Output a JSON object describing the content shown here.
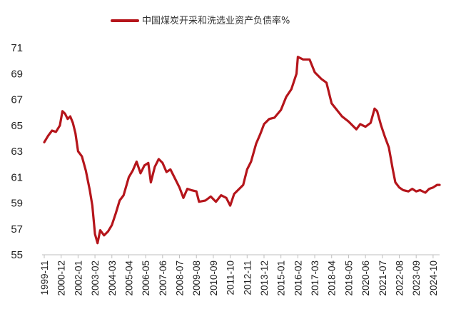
{
  "chart_data": {
    "type": "line",
    "title": "",
    "xlabel": "",
    "ylabel": "",
    "ylim": [
      55,
      71
    ],
    "yticks": [
      55,
      57,
      59,
      61,
      63,
      65,
      67,
      69,
      71
    ],
    "grid": false,
    "legend_position": "top-center",
    "x_tick_labels": [
      "1999-11",
      "2000-12",
      "2002-01",
      "2003-02",
      "2004-03",
      "2005-04",
      "2006-05",
      "2007-06",
      "2008-07",
      "2009-08",
      "2010-09",
      "2011-10",
      "2012-11",
      "2013-12",
      "2015-01",
      "2016-02",
      "2017-03",
      "2018-04",
      "2019-05",
      "2020-06",
      "2021-07",
      "2022-08",
      "2023-09",
      "2024-10"
    ],
    "series": [
      {
        "name": "中国煤炭开采和洗选业资产负债率%",
        "color": "#b5151b",
        "points": [
          [
            "1999-11",
            63.7
          ],
          [
            "2000-02",
            64.2
          ],
          [
            "2000-05",
            64.6
          ],
          [
            "2000-08",
            64.5
          ],
          [
            "2000-11",
            65.0
          ],
          [
            "2001-01",
            66.1
          ],
          [
            "2001-03",
            65.9
          ],
          [
            "2001-05",
            65.5
          ],
          [
            "2001-07",
            65.7
          ],
          [
            "2001-09",
            65.2
          ],
          [
            "2001-11",
            64.4
          ],
          [
            "2002-01",
            63.0
          ],
          [
            "2002-04",
            62.6
          ],
          [
            "2002-07",
            61.5
          ],
          [
            "2002-10",
            60.0
          ],
          [
            "2002-12",
            58.8
          ],
          [
            "2003-02",
            56.6
          ],
          [
            "2003-04",
            55.9
          ],
          [
            "2003-06",
            56.9
          ],
          [
            "2003-09",
            56.5
          ],
          [
            "2003-12",
            56.8
          ],
          [
            "2004-03",
            57.3
          ],
          [
            "2004-06",
            58.2
          ],
          [
            "2004-09",
            59.2
          ],
          [
            "2004-12",
            59.6
          ],
          [
            "2005-04",
            61.0
          ],
          [
            "2005-07",
            61.5
          ],
          [
            "2005-10",
            62.2
          ],
          [
            "2006-01",
            61.3
          ],
          [
            "2006-04",
            61.9
          ],
          [
            "2006-07",
            62.1
          ],
          [
            "2006-09",
            60.6
          ],
          [
            "2006-12",
            61.8
          ],
          [
            "2007-03",
            62.4
          ],
          [
            "2007-06",
            62.1
          ],
          [
            "2007-09",
            61.4
          ],
          [
            "2007-12",
            61.6
          ],
          [
            "2008-04",
            60.8
          ],
          [
            "2008-07",
            60.2
          ],
          [
            "2008-10",
            59.4
          ],
          [
            "2009-01",
            60.1
          ],
          [
            "2009-04",
            60.0
          ],
          [
            "2009-08",
            59.9
          ],
          [
            "2009-10",
            59.1
          ],
          [
            "2010-03",
            59.2
          ],
          [
            "2010-07",
            59.5
          ],
          [
            "2010-11",
            59.1
          ],
          [
            "2011-03",
            59.6
          ],
          [
            "2011-07",
            59.4
          ],
          [
            "2011-10",
            58.8
          ],
          [
            "2012-01",
            59.7
          ],
          [
            "2012-04",
            60.0
          ],
          [
            "2012-08",
            60.4
          ],
          [
            "2012-11",
            61.6
          ],
          [
            "2013-02",
            62.2
          ],
          [
            "2013-06",
            63.6
          ],
          [
            "2013-09",
            64.3
          ],
          [
            "2013-12",
            65.1
          ],
          [
            "2014-04",
            65.5
          ],
          [
            "2014-08",
            65.6
          ],
          [
            "2015-01",
            66.2
          ],
          [
            "2015-05",
            67.2
          ],
          [
            "2015-09",
            67.8
          ],
          [
            "2016-01",
            69.0
          ],
          [
            "2016-02",
            70.3
          ],
          [
            "2016-06",
            70.1
          ],
          [
            "2016-11",
            70.1
          ],
          [
            "2017-03",
            69.1
          ],
          [
            "2017-08",
            68.6
          ],
          [
            "2017-12",
            68.3
          ],
          [
            "2018-04",
            66.7
          ],
          [
            "2018-08",
            66.2
          ],
          [
            "2018-12",
            65.7
          ],
          [
            "2019-05",
            65.3
          ],
          [
            "2019-08",
            65.0
          ],
          [
            "2019-11",
            64.7
          ],
          [
            "2020-02",
            65.1
          ],
          [
            "2020-06",
            64.9
          ],
          [
            "2020-10",
            65.2
          ],
          [
            "2021-01",
            66.3
          ],
          [
            "2021-03",
            66.1
          ],
          [
            "2021-06",
            65.0
          ],
          [
            "2021-09",
            64.1
          ],
          [
            "2021-12",
            63.3
          ],
          [
            "2022-03",
            61.6
          ],
          [
            "2022-05",
            60.6
          ],
          [
            "2022-08",
            60.2
          ],
          [
            "2022-11",
            60.0
          ],
          [
            "2023-03",
            59.9
          ],
          [
            "2023-06",
            60.1
          ],
          [
            "2023-09",
            59.9
          ],
          [
            "2023-12",
            60.0
          ],
          [
            "2024-04",
            59.8
          ],
          [
            "2024-07",
            60.1
          ],
          [
            "2024-10",
            60.2
          ],
          [
            "2025-01",
            60.4
          ],
          [
            "2025-03",
            60.4
          ]
        ]
      }
    ]
  }
}
